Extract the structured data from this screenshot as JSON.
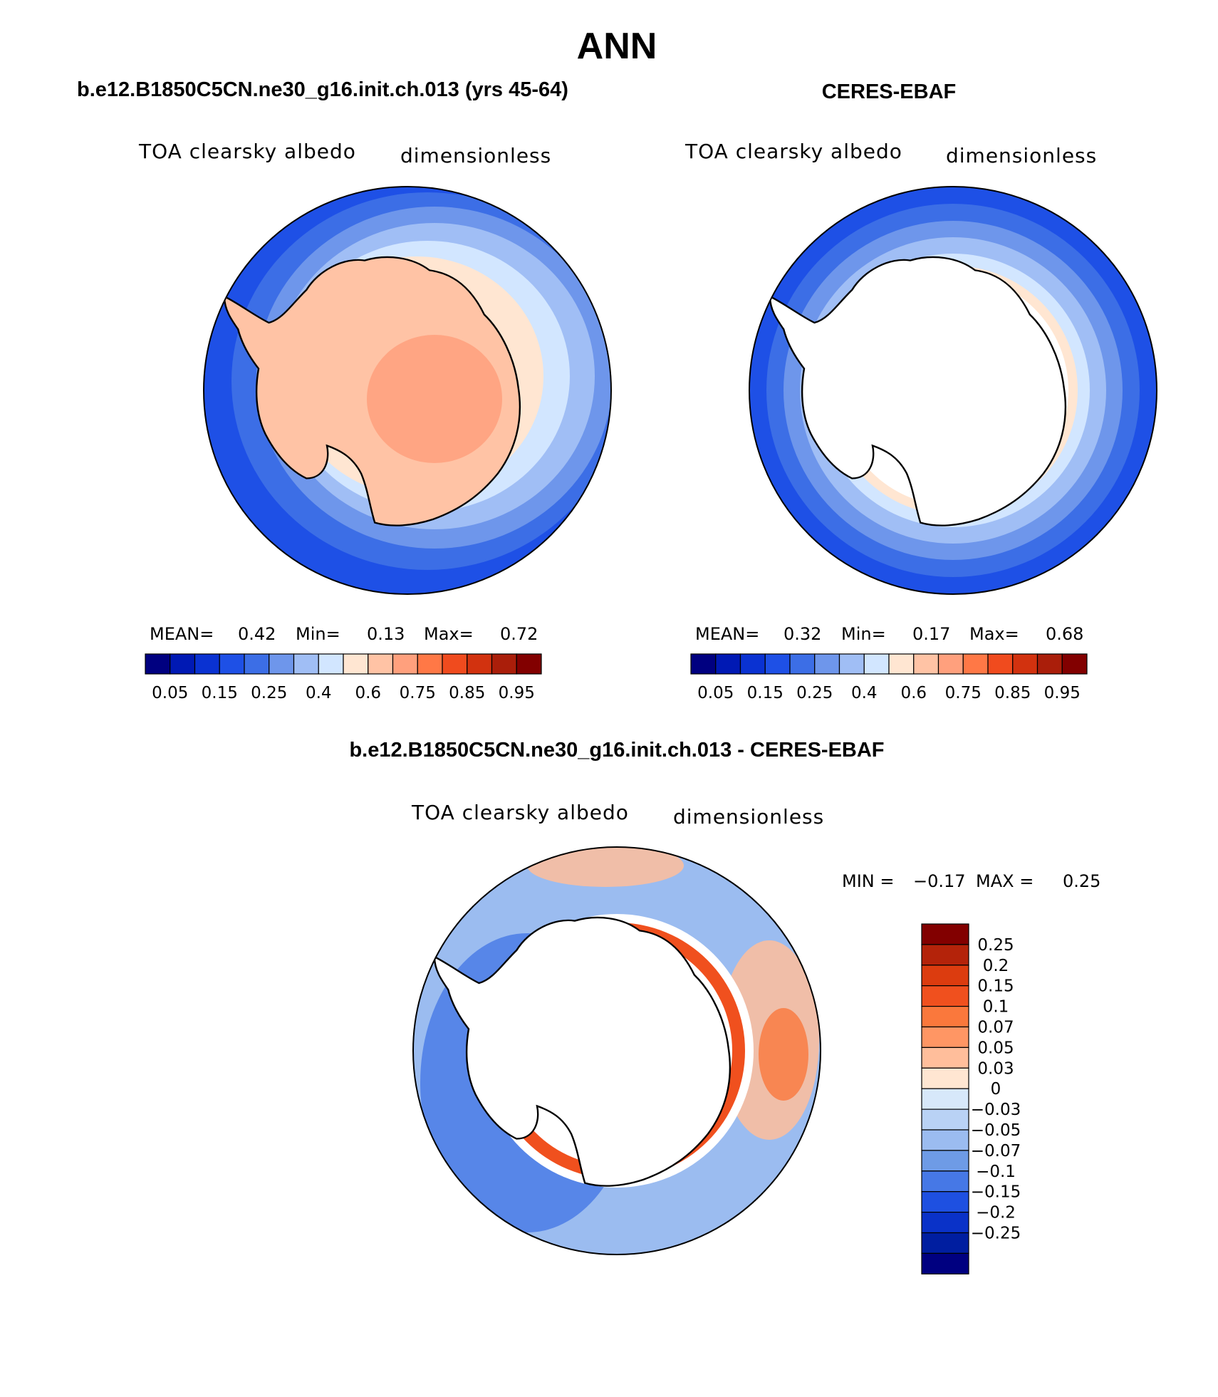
{
  "title": "ANN",
  "panels": [
    {
      "case": "b.e12.B1850C5CN.ne30_g16.init.ch.013 (yrs 45-64)",
      "variable": "TOA clearsky albedo",
      "units": "dimensionless",
      "stats": {
        "mean_label": "MEAN=",
        "mean": "0.42",
        "min_label": "Min=",
        "min": "0.13",
        "max_label": "Max=",
        "max": "0.72"
      }
    },
    {
      "case": "CERES-EBAF",
      "variable": "TOA clearsky albedo",
      "units": "dimensionless",
      "stats": {
        "mean_label": "MEAN=",
        "mean": "0.32",
        "min_label": "Min=",
        "min": "0.17",
        "max_label": "Max=",
        "max": "0.68"
      }
    }
  ],
  "diff_panel": {
    "case": "b.e12.B1850C5CN.ne30_g16.init.ch.013 - CERES-EBAF",
    "variable": "TOA clearsky albedo",
    "units": "dimensionless",
    "minmax": {
      "min_label": "MIN =",
      "min": "−0.17",
      "max_label": "MAX =",
      "max": "0.25"
    }
  },
  "abs_colorbar": {
    "colors": [
      "#000080",
      "#0019b4",
      "#0a32d2",
      "#1e50e6",
      "#3c6ee6",
      "#6e96eb",
      "#a0bef5",
      "#d2e6ff",
      "#ffe6d2",
      "#ffc3a5",
      "#ffa07d",
      "#ff7846",
      "#f04b1e",
      "#d2320f",
      "#aa1e0a",
      "#820000"
    ],
    "labels": [
      "0.05",
      "0.15",
      "0.25",
      "0.4",
      "0.6",
      "0.75",
      "0.85",
      "0.95"
    ]
  },
  "diff_colorbar": {
    "colors": [
      "#820000",
      "#b4230a",
      "#dc3c0f",
      "#f0501e",
      "#fa783c",
      "#ff9664",
      "#ffbe9b",
      "#ffe6d2",
      "#d7e8fa",
      "#b9d2f5",
      "#9bbcf0",
      "#6e9be6",
      "#4678e6",
      "#1e50e1",
      "#0a32c8",
      "#001ea0",
      "#000080"
    ],
    "labels": [
      "0.25",
      "0.2",
      "0.15",
      "0.1",
      "0.07",
      "0.05",
      "0.03",
      "0",
      "−0.03",
      "−0.05",
      "−0.07",
      "−0.1",
      "−0.15",
      "−0.2",
      "−0.25"
    ]
  }
}
